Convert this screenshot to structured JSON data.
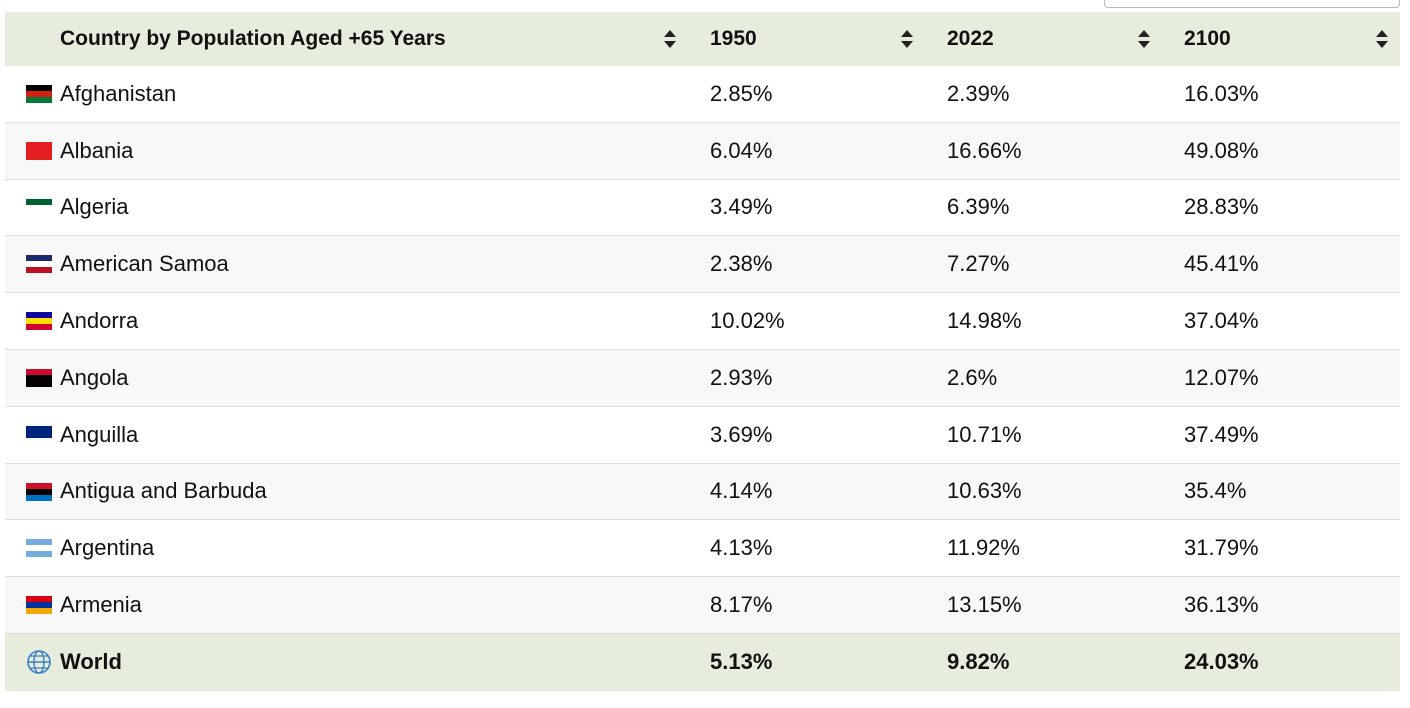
{
  "table": {
    "header": [
      "Country by Population Aged +65 Years",
      "1950",
      "2022",
      "2100"
    ],
    "rows": [
      [
        "Afghanistan",
        "2.85%",
        "2.39%",
        "16.03%"
      ],
      [
        "Albania",
        "6.04%",
        "16.66%",
        "49.08%"
      ],
      [
        "Algeria",
        "3.49%",
        "6.39%",
        "28.83%"
      ],
      [
        "American Samoa",
        "2.38%",
        "7.27%",
        "45.41%"
      ],
      [
        "Andorra",
        "10.02%",
        "14.98%",
        "37.04%"
      ],
      [
        "Angola",
        "2.93%",
        "2.6%",
        "12.07%"
      ],
      [
        "Anguilla",
        "3.69%",
        "10.71%",
        "37.49%"
      ],
      [
        "Antigua and Barbuda",
        "4.14%",
        "10.63%",
        "35.4%"
      ],
      [
        "Argentina",
        "4.13%",
        "11.92%",
        "31.79%"
      ],
      [
        "Armenia",
        "8.17%",
        "13.15%",
        "36.13%"
      ]
    ],
    "footer": [
      "World",
      "5.13%",
      "9.82%",
      "24.03%"
    ]
  }
}
